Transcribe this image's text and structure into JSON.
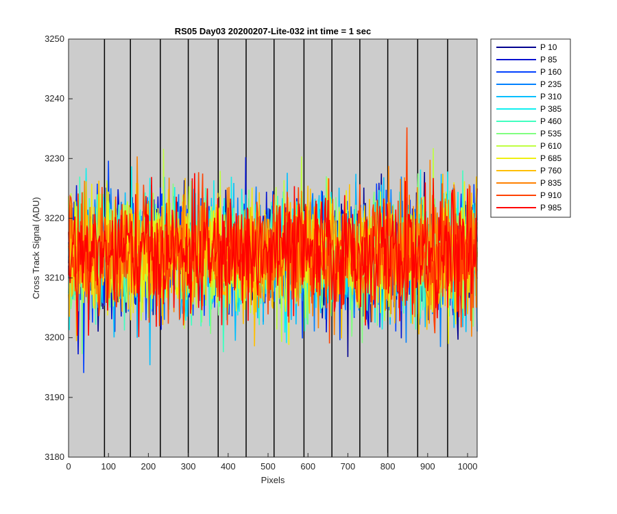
{
  "chart_data": {
    "type": "line",
    "title": "RS05 Day03 20200207-Lite-032 int time = 1 sec",
    "xlabel": "Pixels",
    "ylabel": "Cross Track Signal (ADU)",
    "xlim": [
      0,
      1024
    ],
    "ylim": [
      3180,
      3250
    ],
    "xticks": [
      0,
      100,
      200,
      300,
      400,
      500,
      600,
      700,
      800,
      900,
      1000
    ],
    "yticks": [
      3180,
      3190,
      3200,
      3210,
      3220,
      3230,
      3240,
      3250
    ],
    "plot_background": "#cccccc",
    "vertical_lines": [
      90,
      155,
      230,
      300,
      375,
      445,
      515,
      590,
      660,
      730,
      800,
      875,
      950
    ],
    "vertical_line_color": "#000000",
    "legend_position": "outside-right-top",
    "series_mean": 3214,
    "series_noise_amplitude": 9,
    "series": [
      {
        "name": "P 10",
        "color": "#00008f"
      },
      {
        "name": "P 85",
        "color": "#0010d0"
      },
      {
        "name": "P 160",
        "color": "#0040ff"
      },
      {
        "name": "P 235",
        "color": "#0080ff"
      },
      {
        "name": "P 310",
        "color": "#00bfff"
      },
      {
        "name": "P 385",
        "color": "#10efef"
      },
      {
        "name": "P 460",
        "color": "#40ffbf"
      },
      {
        "name": "P 535",
        "color": "#80ff80"
      },
      {
        "name": "P 610",
        "color": "#bfff40"
      },
      {
        "name": "P 685",
        "color": "#efef10"
      },
      {
        "name": "P 760",
        "color": "#ffbf00"
      },
      {
        "name": "P 835",
        "color": "#ff8000"
      },
      {
        "name": "P 910",
        "color": "#ff4000"
      },
      {
        "name": "P 985",
        "color": "#ff0000"
      }
    ]
  }
}
